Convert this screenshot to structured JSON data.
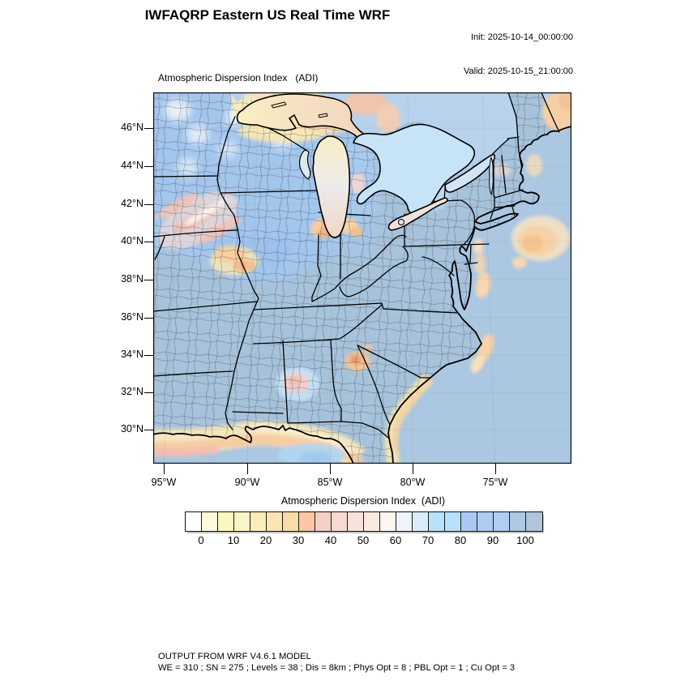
{
  "header": {
    "title": "IWFAQRP Eastern US Real Time WRF",
    "init_line": "Init: 2025-10-14_00:00:00",
    "valid_line": "Valid: 2025-10-15_21:00:00"
  },
  "map": {
    "field_label": "Atmospheric Dispersion Index   (ADI)",
    "lat_ticks": [
      "46°N",
      "44°N",
      "42°N",
      "40°N",
      "38°N",
      "36°N",
      "34°N",
      "32°N",
      "30°N"
    ],
    "lon_ticks": [
      "95°W",
      "90°W",
      "85°W",
      "80°W",
      "75°W"
    ]
  },
  "colorbar": {
    "title": "Atmospheric Dispersion Index  (ADI)",
    "tick_labels": [
      "0",
      "10",
      "20",
      "30",
      "40",
      "50",
      "60",
      "70",
      "80",
      "90",
      "100"
    ],
    "min": 0,
    "max": 100,
    "tick_step": 10,
    "cell_interval": 5,
    "cell_colors": [
      "#FFFFFF",
      "#FCFADA",
      "#FBF8BE",
      "#FAF5C4",
      "#FAEDB6",
      "#FCE4B0",
      "#FBDBA6",
      "#FCC6A4",
      "#F5CEC5",
      "#F7D9D1",
      "#F8E3DB",
      "#FAEAE1",
      "#FEF5F1",
      "#EFF4FD",
      "#DAEBFA",
      "#B5E3FA",
      "#B7E0FB",
      "#A9C9F4",
      "#AECBF5",
      "#B0CDF6",
      "#AFC8E3",
      "#B0C4DA"
    ]
  },
  "footer": {
    "line1": "OUTPUT FROM WRF V4.6.1 MODEL",
    "line2": "WE = 310 ; SN = 275 ; Levels = 38 ; Dis = 8km ; Phys Opt = 8 ; PBL Opt = 1 ; Cu Opt = 3"
  },
  "theme": {
    "ocean": "#ABC7E1",
    "land_base": "#A7C2DB",
    "midwest_blue": "#A3C7F0",
    "canada_blue": "#B8D2EE",
    "warm_orange": "#F6C596",
    "warm_salmon": "#F5C4A4",
    "warm_pink": "#F2CFC8",
    "lake_cream": "#F9F0C2"
  }
}
